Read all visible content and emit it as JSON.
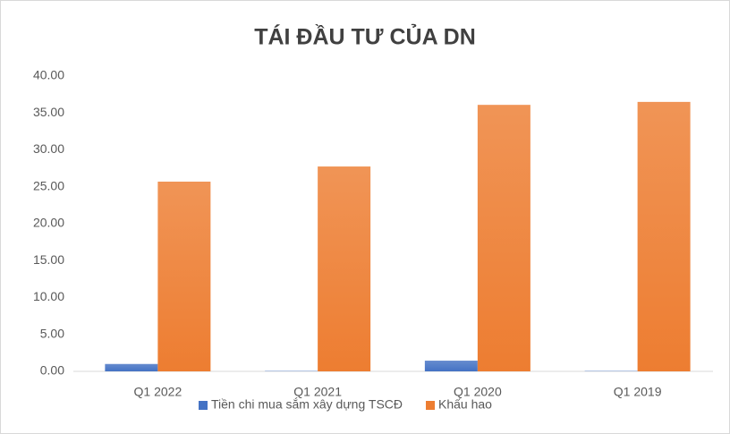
{
  "chart_data": {
    "type": "bar",
    "title": "TÁI ĐẦU TƯ CỦA DN",
    "categories": [
      "Q1 2022",
      "Q1 2021",
      "Q1 2020",
      "Q1 2019"
    ],
    "series": [
      {
        "name": "Tiền chi mua sắm xây dựng TSCĐ",
        "color": "#4472c4",
        "values": [
          1.0,
          0.05,
          1.45,
          0.05
        ]
      },
      {
        "name": "Khấu hao",
        "color": "#ed7d31",
        "values": [
          25.7,
          27.75,
          36.1,
          36.5
        ]
      }
    ],
    "ylim": [
      0,
      40
    ],
    "yticks": [
      {
        "value": 0,
        "label": "0.00"
      },
      {
        "value": 5,
        "label": "5.00"
      },
      {
        "value": 10,
        "label": "10.00"
      },
      {
        "value": 15,
        "label": "15.00"
      },
      {
        "value": 20,
        "label": "20.00"
      },
      {
        "value": 25,
        "label": "25.00"
      },
      {
        "value": 30,
        "label": "30.00"
      },
      {
        "value": 35,
        "label": "35.00"
      },
      {
        "value": 40,
        "label": "40.00"
      }
    ],
    "grid": false,
    "legend": "bottom"
  }
}
